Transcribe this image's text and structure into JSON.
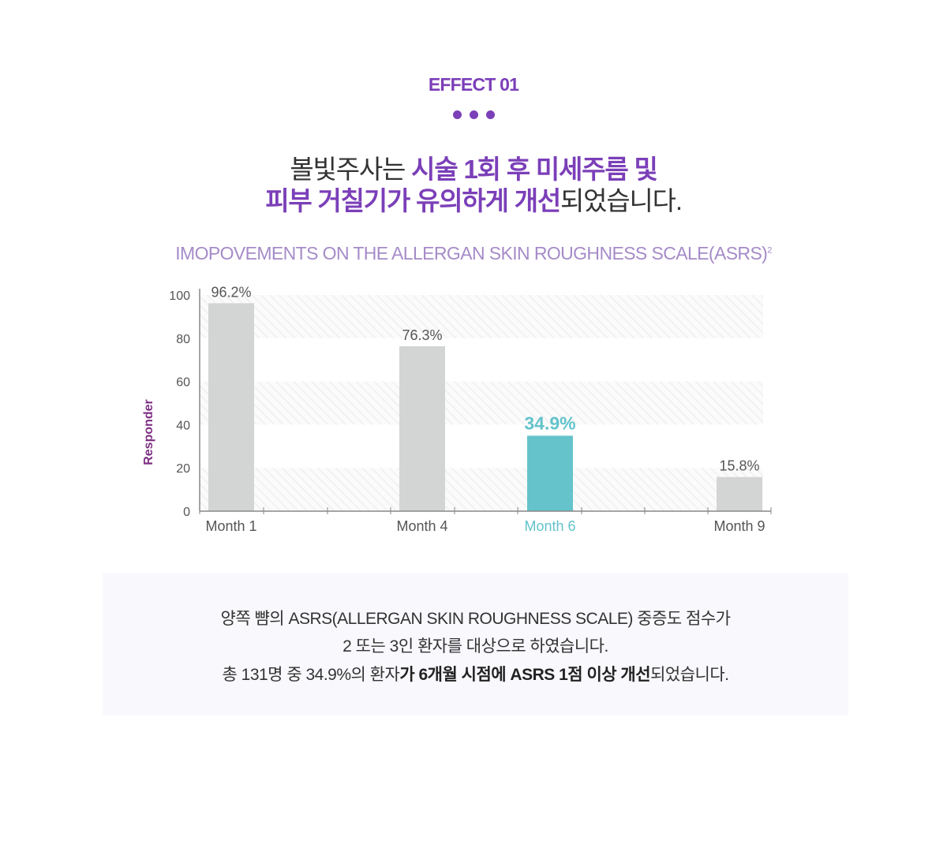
{
  "header": {
    "effect_label": "EFFECT 01",
    "line1": {
      "plain": "볼빛주사는 ",
      "highlight": "시술  1회 후  미세주름 및"
    },
    "line2": {
      "highlight": "피부 거칠기가 유의하게 개선",
      "plain": "되었습니다."
    }
  },
  "chart_title": {
    "text": "IMOPOVEMENTS ON THE ALLERGAN SKIN ROUGHNESS SCALE(ASRS)",
    "superscript": "2"
  },
  "chart_data": {
    "type": "bar",
    "categories": [
      "Month 1",
      "Month 4",
      "Month 6",
      "Month 9"
    ],
    "values": [
      96.2,
      76.3,
      34.9,
      15.8
    ],
    "data_labels": [
      "96.2%",
      "76.3%",
      "34.9%",
      "15.8%"
    ],
    "highlight_index": 2,
    "ylabel": "Responder",
    "ylim": [
      0,
      100
    ],
    "yticks": [
      0,
      20,
      40,
      60,
      80,
      100
    ],
    "grid": "hatched horizontal bands"
  },
  "summary": {
    "line1": "양쪽 뺨의 ASRS(ALLERGAN SKIN ROUGHNESS SCALE) 중증도 점수가",
    "line2": "2 또는 3인 환자를 대상으로 하였습니다.",
    "line3": {
      "plain_start": "총 131명 중 34.9%의 환자",
      "bold": "가 6개월 시점에 ASRS 1점 이상 개선",
      "plain_end": "되었습니다."
    }
  },
  "colors": {
    "purple": "#7b3fb8",
    "title_purple": "#a58bc8",
    "ylabel_purple": "#7d2e82",
    "bar_gray": "#d3d4d4",
    "bar_highlight": "#64c3cb",
    "axis": "#888888",
    "summary_bg": "#f8f8fd",
    "text": "#333333"
  }
}
